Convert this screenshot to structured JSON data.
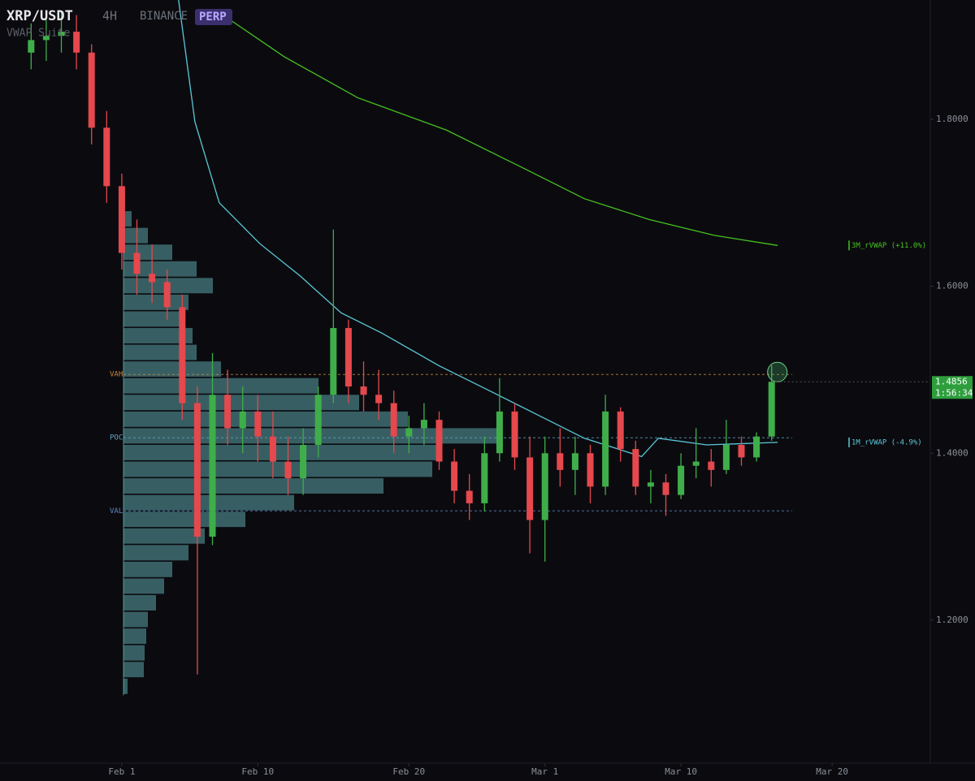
{
  "chart_data": {
    "type": "candlestick",
    "title": "XRP/USDT",
    "interval": "4H",
    "exchange": "BINANCE",
    "badge": "PERP",
    "subtitle": "VWAP Suite",
    "xlim": [
      -8.06,
      53.5
    ],
    "ylim": [
      1.0287,
      1.943
    ],
    "xticks": [
      {
        "value": 0,
        "label": "Feb 1"
      },
      {
        "value": 9,
        "label": "Feb 10"
      },
      {
        "value": 19,
        "label": "Feb 20"
      },
      {
        "value": 28,
        "label": "Mar 1"
      },
      {
        "value": 37,
        "label": "Mar 10"
      },
      {
        "value": 47,
        "label": "Mar 20"
      }
    ],
    "yticks": [
      {
        "value": 1.2,
        "label": "1.2000"
      },
      {
        "value": 1.4,
        "label": "1.4000"
      },
      {
        "value": 1.6,
        "label": "1.6000"
      },
      {
        "value": 1.8,
        "label": "1.8000"
      }
    ],
    "up_color": "#3fae4a",
    "down_color": "#e5484d",
    "x": [
      -6,
      -5,
      -4,
      -3,
      -2,
      -1,
      0,
      1,
      2,
      3,
      4,
      5,
      6,
      7,
      8,
      9,
      10,
      11,
      12,
      13,
      14,
      15,
      16,
      17,
      18,
      19,
      20,
      21,
      22,
      23,
      24,
      25,
      26,
      27,
      28,
      29,
      30,
      31,
      32,
      33,
      34,
      35,
      36,
      37,
      38,
      39,
      40,
      41,
      42,
      43
    ],
    "open": [
      1.88,
      1.895,
      1.9,
      1.905,
      1.88,
      1.79,
      1.72,
      1.64,
      1.615,
      1.605,
      1.575,
      1.46,
      1.3,
      1.47,
      1.43,
      1.45,
      1.42,
      1.39,
      1.37,
      1.41,
      1.47,
      1.55,
      1.48,
      1.47,
      1.46,
      1.42,
      1.43,
      1.44,
      1.39,
      1.355,
      1.34,
      1.4,
      1.45,
      1.395,
      1.32,
      1.4,
      1.38,
      1.4,
      1.36,
      1.45,
      1.405,
      1.36,
      1.365,
      1.35,
      1.385,
      1.39,
      1.38,
      1.41,
      1.395,
      1.42
    ],
    "high": [
      1.915,
      1.925,
      1.93,
      1.925,
      1.89,
      1.81,
      1.735,
      1.68,
      1.65,
      1.62,
      1.59,
      1.48,
      1.52,
      1.5,
      1.48,
      1.47,
      1.45,
      1.42,
      1.43,
      1.48,
      1.668,
      1.56,
      1.51,
      1.5,
      1.475,
      1.445,
      1.46,
      1.45,
      1.405,
      1.375,
      1.42,
      1.49,
      1.46,
      1.42,
      1.42,
      1.43,
      1.42,
      1.41,
      1.47,
      1.455,
      1.415,
      1.38,
      1.375,
      1.4,
      1.43,
      1.405,
      1.44,
      1.42,
      1.425,
      1.505
    ],
    "low": [
      1.86,
      1.87,
      1.88,
      1.86,
      1.77,
      1.7,
      1.62,
      1.59,
      1.58,
      1.56,
      1.44,
      1.135,
      1.29,
      1.41,
      1.4,
      1.39,
      1.37,
      1.35,
      1.35,
      1.395,
      1.46,
      1.46,
      1.45,
      1.44,
      1.4,
      1.4,
      1.41,
      1.38,
      1.34,
      1.32,
      1.33,
      1.39,
      1.38,
      1.28,
      1.27,
      1.36,
      1.35,
      1.34,
      1.35,
      1.39,
      1.35,
      1.34,
      1.325,
      1.345,
      1.37,
      1.36,
      1.375,
      1.385,
      1.39,
      1.415
    ],
    "close": [
      1.895,
      1.9,
      1.905,
      1.88,
      1.79,
      1.72,
      1.64,
      1.615,
      1.605,
      1.575,
      1.46,
      1.3,
      1.47,
      1.43,
      1.45,
      1.42,
      1.39,
      1.37,
      1.41,
      1.47,
      1.55,
      1.48,
      1.47,
      1.46,
      1.42,
      1.43,
      1.44,
      1.39,
      1.355,
      1.34,
      1.4,
      1.45,
      1.395,
      1.32,
      1.4,
      1.38,
      1.4,
      1.36,
      1.45,
      1.405,
      1.36,
      1.365,
      1.35,
      1.385,
      1.39,
      1.38,
      1.41,
      1.395,
      1.42,
      1.4856
    ],
    "last_price": 1.4856,
    "countdown": "1:56:34",
    "series": [
      {
        "name": "3M_rVWAP (+11.0%)",
        "color": "#46c21f",
        "x": [
          6.7,
          10.75,
          15.6,
          21.5,
          26.3,
          30.6,
          34.9,
          39.2,
          43.4
        ],
        "values": [
          1.925,
          1.875,
          1.826,
          1.787,
          1.744,
          1.705,
          1.68,
          1.661,
          1.649
        ]
      },
      {
        "name": "1M_rVWAP (-4.9%)",
        "color": "#5cc8d8",
        "x": [
          3.76,
          4.84,
          6.45,
          9.14,
          11.83,
          14.52,
          17.2,
          20.97,
          24.2,
          27.4,
          30.6,
          34.4,
          35.5,
          38.7,
          43.4
        ],
        "values": [
          1.943,
          1.797,
          1.7,
          1.651,
          1.612,
          1.568,
          1.544,
          1.505,
          1.476,
          1.447,
          1.418,
          1.396,
          1.418,
          1.41,
          1.413
        ]
      }
    ],
    "profile": {
      "prices": [
        1.68,
        1.66,
        1.64,
        1.62,
        1.6,
        1.58,
        1.56,
        1.54,
        1.52,
        1.5,
        1.48,
        1.46,
        1.44,
        1.42,
        1.4,
        1.38,
        1.36,
        1.34,
        1.32,
        1.3,
        1.28,
        1.26,
        1.24,
        1.22,
        1.2,
        1.18,
        1.16,
        1.14,
        1.12
      ],
      "volumes": [
        10,
        30,
        60,
        90,
        110,
        80,
        75,
        85,
        90,
        120,
        240,
        290,
        350,
        460,
        390,
        380,
        320,
        210,
        150,
        100,
        80,
        60,
        50,
        40,
        30,
        28,
        26,
        25,
        5
      ],
      "color": "#6cc6c9"
    },
    "levels": [
      {
        "label": "VAH",
        "value": 1.4944,
        "color": "#c9873a"
      },
      {
        "label": "POC",
        "value": 1.4185,
        "color": "#5fa8c8"
      },
      {
        "label": "VAL",
        "value": 1.3309,
        "color": "#5f8ac8"
      }
    ]
  }
}
